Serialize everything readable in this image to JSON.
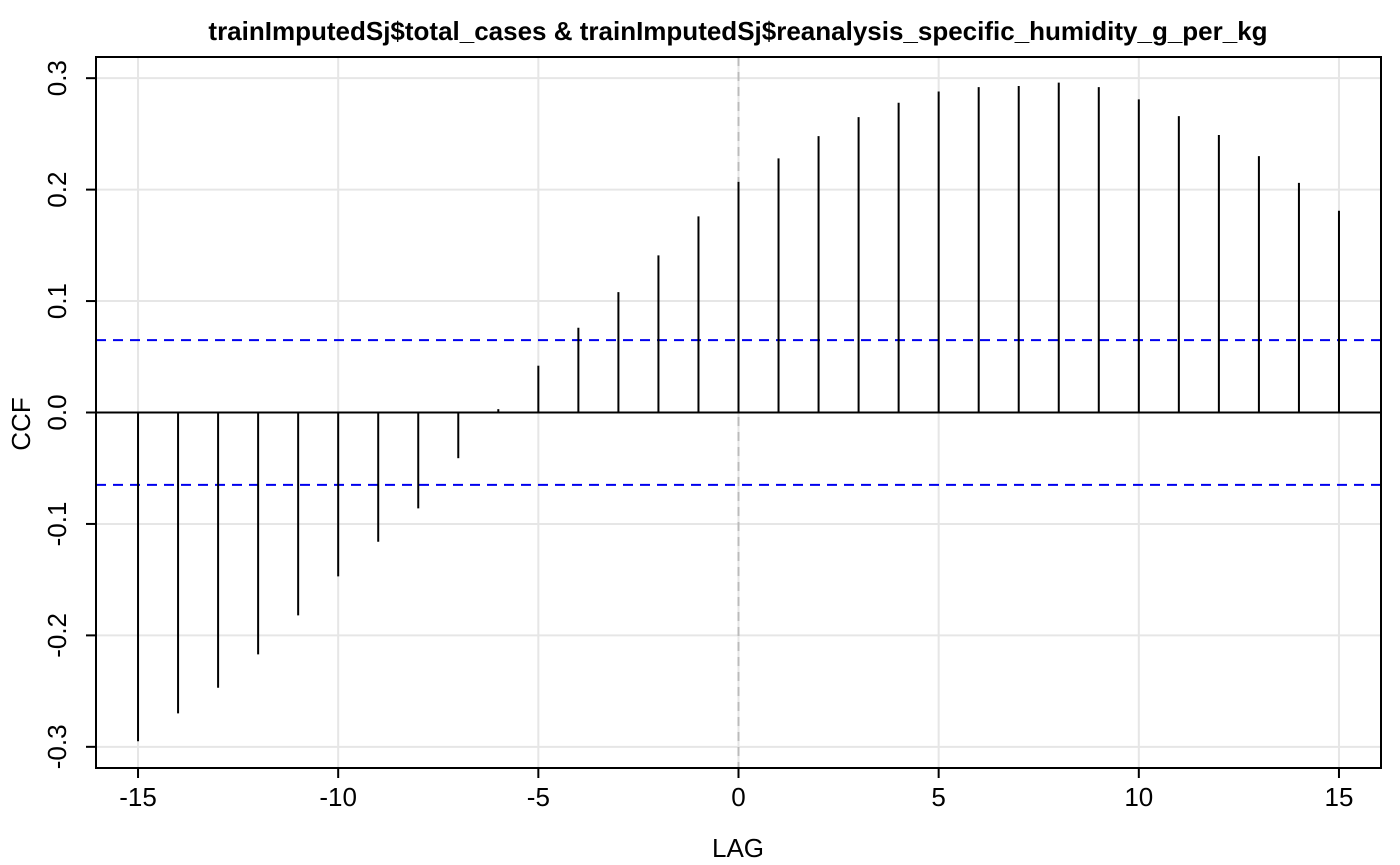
{
  "chart_data": {
    "type": "bar",
    "title": "trainImputedSj$total_cases & trainImputedSj$reanalysis_specific_humidity_g_per_kg",
    "xlabel": "LAG",
    "ylabel": "CCF",
    "xlim": [
      -16.05,
      16.05
    ],
    "ylim": [
      -0.319,
      0.319
    ],
    "x_ticks": [
      -15,
      -10,
      -5,
      0,
      5,
      10,
      15
    ],
    "x_tick_labels": [
      "-15",
      "-10",
      "-5",
      "0",
      "5",
      "10",
      "15"
    ],
    "y_ticks": [
      -0.3,
      -0.2,
      -0.1,
      0.0,
      0.1,
      0.2,
      0.3
    ],
    "y_tick_labels": [
      "-0.3",
      "-0.2",
      "-0.1",
      "0.0",
      "0.1",
      "0.2",
      "0.3"
    ],
    "grid": true,
    "confidence_bound": 0.065,
    "zero_reference_line": 0,
    "lags": [
      -15,
      -14,
      -13,
      -12,
      -11,
      -10,
      -9,
      -8,
      -7,
      -6,
      -5,
      -4,
      -3,
      -2,
      -1,
      0,
      1,
      2,
      3,
      4,
      5,
      6,
      7,
      8,
      9,
      10,
      11,
      12,
      13,
      14,
      15
    ],
    "values": [
      -0.295,
      -0.27,
      -0.247,
      -0.217,
      -0.182,
      -0.147,
      -0.116,
      -0.086,
      -0.041,
      0.003,
      0.042,
      0.076,
      0.108,
      0.141,
      0.176,
      0.207,
      0.228,
      0.248,
      0.265,
      0.278,
      0.288,
      0.292,
      0.293,
      0.296,
      0.292,
      0.281,
      0.266,
      0.249,
      0.23,
      0.206,
      0.181
    ],
    "colors": {
      "bars": "#000000",
      "confidence_line": "#0000ee",
      "grid": "#e6e6e6",
      "zero_lag_line": "#bbbbbb",
      "axes": "#000000"
    }
  }
}
